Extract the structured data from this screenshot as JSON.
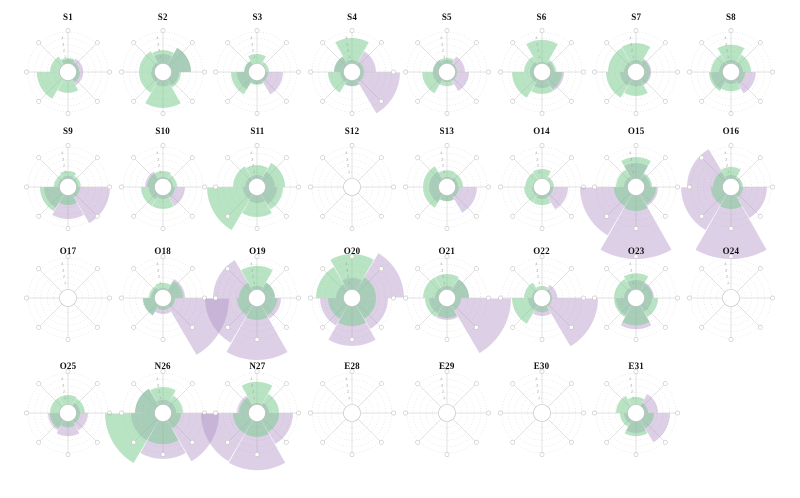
{
  "figure": {
    "background": "#ffffff"
  },
  "chart_data": {
    "type": "polar-rose-grid",
    "rows": 4,
    "cols": 8,
    "sector_centers_deg": [
      0,
      60,
      120,
      180,
      240,
      300
    ],
    "sector_width_deg": 59,
    "theta_grid_deg": [
      0,
      45,
      90,
      135,
      180,
      225,
      270,
      315
    ],
    "radial_ticks": [
      "1",
      "2",
      "3",
      "4"
    ],
    "grid_rings": 5,
    "legend": "none",
    "colors": {
      "green_petal": "rgba(115,201,137,0.5)",
      "purple_petal": "rgba(170,138,193,0.4)",
      "grid_line": "#cccccc",
      "spoke_line": "#c6c6c6",
      "marker_stroke": "#c2c2c2",
      "marker_fill": "#ffffff",
      "tick_text": "#9a9a9a",
      "title_text": "#111111"
    },
    "plots": [
      {
        "label": "S1",
        "green": [
          0.35,
          0.28,
          0.3,
          0.52,
          0.78,
          0.45
        ],
        "purple": [
          0.32,
          0.38,
          0.38,
          0.18,
          0.22,
          0.15
        ]
      },
      {
        "label": "S2",
        "green": [
          0.55,
          0.7,
          0.45,
          0.9,
          0.6,
          0.6
        ],
        "purple": [
          0.45,
          0.7,
          0.4,
          0.35,
          0.3,
          0.28
        ]
      },
      {
        "label": "S3",
        "green": [
          0.45,
          0.3,
          0.28,
          0.32,
          0.65,
          0.32
        ],
        "purple": [
          0.15,
          0.18,
          0.65,
          0.3,
          0.5,
          0.32
        ]
      },
      {
        "label": "S4",
        "green": [
          0.85,
          0.3,
          0.3,
          0.35,
          0.6,
          0.45
        ],
        "purple": [
          0.3,
          0.6,
          1.2,
          0.35,
          0.3,
          0.45
        ]
      },
      {
        "label": "S5",
        "green": [
          0.35,
          0.25,
          0.25,
          0.35,
          0.62,
          0.35
        ],
        "purple": [
          0.3,
          0.45,
          0.55,
          0.25,
          0.35,
          0.35
        ]
      },
      {
        "label": "S6",
        "green": [
          0.8,
          0.35,
          0.5,
          0.55,
          0.75,
          0.45
        ],
        "purple": [
          0.25,
          0.3,
          0.55,
          0.4,
          0.3,
          0.3
        ]
      },
      {
        "label": "S7",
        "green": [
          0.72,
          0.35,
          0.35,
          0.6,
          0.75,
          0.7
        ],
        "purple": [
          0.3,
          0.38,
          0.38,
          0.35,
          0.4,
          0.3
        ]
      },
      {
        "label": "S8",
        "green": [
          0.68,
          0.5,
          0.35,
          0.48,
          0.55,
          0.5
        ],
        "purple": [
          0.3,
          0.3,
          0.62,
          0.3,
          0.5,
          0.3
        ]
      },
      {
        "label": "S9",
        "green": [
          0.4,
          0.32,
          0.3,
          0.45,
          0.7,
          0.35
        ],
        "purple": [
          0.28,
          0.25,
          1.05,
          0.8,
          0.6,
          0.25
        ]
      },
      {
        "label": "S10",
        "green": [
          0.4,
          0.35,
          0.3,
          0.55,
          0.55,
          0.4
        ],
        "purple": [
          0.25,
          0.25,
          0.55,
          0.3,
          0.35,
          0.45
        ]
      },
      {
        "label": "S11",
        "green": [
          0.55,
          0.7,
          0.65,
          0.75,
          1.25,
          0.6
        ],
        "purple": [
          0.3,
          0.45,
          0.5,
          0.4,
          0.35,
          0.3
        ]
      },
      {
        "label": "S12",
        "green": [
          0,
          0,
          0,
          0,
          0,
          0
        ],
        "purple": [
          0,
          0,
          0,
          0,
          0,
          0
        ]
      },
      {
        "label": "S13",
        "green": [
          0.42,
          0.4,
          0.3,
          0.35,
          0.6,
          0.6
        ],
        "purple": [
          0.25,
          0.28,
          0.75,
          0.35,
          0.45,
          0.45
        ]
      },
      {
        "label": "O14",
        "green": [
          0.45,
          0.3,
          0.28,
          0.45,
          0.45,
          0.42
        ],
        "purple": [
          0.2,
          0.2,
          0.65,
          0.3,
          0.25,
          0.2
        ]
      },
      {
        "label": "O15",
        "green": [
          0.75,
          0.4,
          0.5,
          0.6,
          0.55,
          0.5
        ],
        "purple": [
          0.6,
          0.35,
          0.55,
          1.8,
          1.4,
          0.3
        ]
      },
      {
        "label": "O16",
        "green": [
          0.5,
          0.3,
          0.3,
          0.55,
          0.5,
          0.45
        ],
        "purple": [
          0.3,
          0.25,
          0.9,
          1.8,
          1.25,
          1.1
        ]
      },
      {
        "label": "O17",
        "green": [
          0,
          0,
          0,
          0,
          0,
          0
        ],
        "purple": [
          0,
          0,
          0,
          0,
          0,
          0
        ]
      },
      {
        "label": "O18",
        "green": [
          0.38,
          0.5,
          0.3,
          0.3,
          0.5,
          0.35
        ],
        "purple": [
          0.25,
          0.55,
          1.65,
          0.4,
          0.5,
          0.3
        ]
      },
      {
        "label": "O19",
        "green": [
          0.8,
          0.45,
          0.5,
          0.55,
          0.5,
          0.45
        ],
        "purple": [
          0.3,
          0.45,
          0.6,
          1.55,
          1.3,
          1.1
        ]
      },
      {
        "label": "O20",
        "green": [
          1.1,
          0.6,
          0.6,
          0.7,
          0.6,
          0.9
        ],
        "purple": [
          0.5,
          1.3,
          0.9,
          1.2,
          0.8,
          0.4
        ]
      },
      {
        "label": "O21",
        "green": [
          0.6,
          0.55,
          0.35,
          0.5,
          0.55,
          0.6
        ],
        "purple": [
          0.3,
          0.55,
          1.6,
          0.55,
          0.45,
          0.3
        ]
      },
      {
        "label": "O22",
        "green": [
          0.3,
          0.25,
          0.25,
          0.35,
          0.75,
          0.45
        ],
        "purple": [
          0.2,
          0.38,
          1.4,
          0.45,
          0.35,
          0.25
        ]
      },
      {
        "label": "O23",
        "green": [
          0.62,
          0.42,
          0.55,
          0.68,
          0.55,
          0.55
        ],
        "purple": [
          0.45,
          0.45,
          0.4,
          0.78,
          0.5,
          0.3
        ]
      },
      {
        "label": "O24",
        "green": [
          0,
          0,
          0,
          0,
          0,
          0
        ],
        "purple": [
          0,
          0,
          0,
          0,
          0,
          0
        ]
      },
      {
        "label": "O25",
        "green": [
          0.45,
          0.42,
          0.3,
          0.35,
          0.45,
          0.45
        ],
        "purple": [
          0.2,
          0.3,
          0.5,
          0.58,
          0.5,
          0.2
        ]
      },
      {
        "label": "N26",
        "green": [
          0.65,
          0.5,
          0.45,
          0.78,
          1.45,
          0.7
        ],
        "purple": [
          0.33,
          0.33,
          1.4,
          1.15,
          0.8,
          0.7
        ]
      },
      {
        "label": "N27",
        "green": [
          0.78,
          0.55,
          0.55,
          0.6,
          0.6,
          0.45
        ],
        "purple": [
          0.25,
          0.3,
          0.9,
          1.43,
          1.4,
          0.5
        ]
      },
      {
        "label": "E28",
        "green": [
          0,
          0,
          0,
          0,
          0,
          0
        ],
        "purple": [
          0,
          0,
          0,
          0,
          0,
          0
        ]
      },
      {
        "label": "E29",
        "green": [
          0,
          0,
          0,
          0,
          0,
          0
        ],
        "purple": [
          0,
          0,
          0,
          0,
          0,
          0
        ]
      },
      {
        "label": "E30",
        "green": [
          0,
          0,
          0,
          0,
          0,
          0
        ],
        "purple": [
          0,
          0,
          0,
          0,
          0,
          0
        ]
      },
      {
        "label": "E31",
        "green": [
          0.4,
          0.3,
          0.45,
          0.58,
          0.4,
          0.5
        ],
        "purple": [
          0.2,
          0.55,
          0.85,
          0.5,
          0.3,
          0.2
        ]
      }
    ]
  }
}
